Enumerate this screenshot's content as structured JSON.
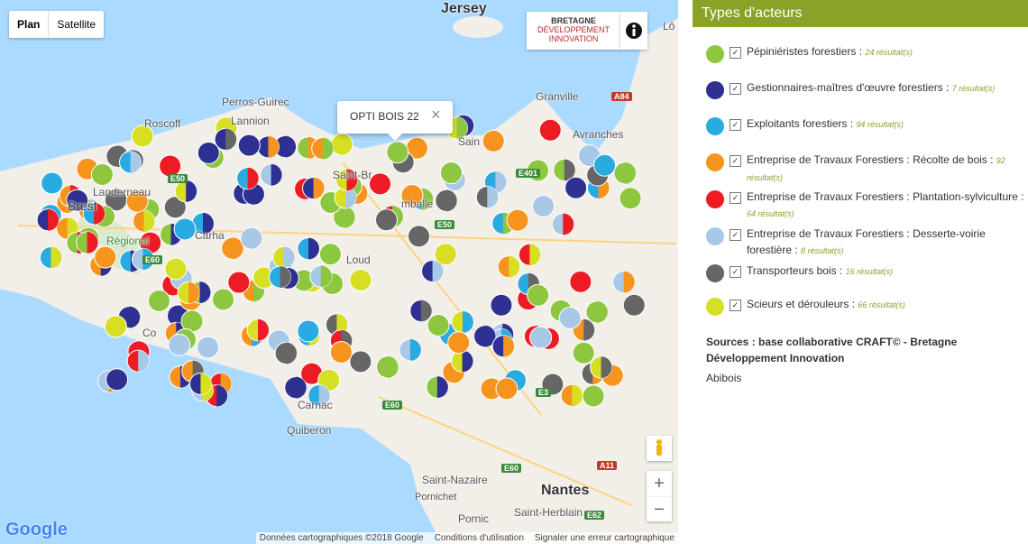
{
  "map": {
    "controls": {
      "plan": "Plan",
      "satellite": "Satellite",
      "zoom_in": "+",
      "zoom_out": "−"
    },
    "logo": {
      "line1": "BRETAGNE",
      "line2": "DÉVELOPPEMENT",
      "line3": "INNOVATION"
    },
    "popup": {
      "title": "OPTI BOIS 22",
      "close": "×"
    },
    "places": [
      "Jersey",
      "Lô",
      "Perros-Guirec",
      "Lannion",
      "Roscoff",
      "Saint-Br",
      "Granville",
      "Avranches",
      "Sain",
      "Landerneau",
      "Brest",
      "mballe",
      "Carha",
      "Loud",
      "Co",
      "Carnac",
      "Quiberon",
      "Saint-Nazaire",
      "Pornichet",
      "Nantes",
      "Saint-Herblain",
      "Pornic",
      "Régional"
    ],
    "roads": [
      "A84",
      "E401",
      "E50",
      "E60",
      "E60",
      "E3",
      "E60",
      "A11",
      "E62",
      "E50"
    ],
    "footer": {
      "brand": "Google",
      "data": "Données cartographiques ©2018 Google",
      "terms": "Conditions d'utilisation",
      "report": "Signaler une erreur cartographique"
    }
  },
  "legend": {
    "title": "Types d'acteurs",
    "items": [
      {
        "label": "Pépiniéristes forestiers : ",
        "count": "24 résultat(s)",
        "color": "#8dc63f"
      },
      {
        "label": "Gestionnaires-maîtres d'œuvre forestiers : ",
        "count": "7 résultat(s)",
        "color": "#2e3192"
      },
      {
        "label": "Exploitants forestiers : ",
        "count": "94 résultat(s)",
        "color": "#29abe2"
      },
      {
        "label": "Entreprise de Travaux Forestiers : Récolte de bois : ",
        "count": "92 résultat(s)",
        "color": "#f7941d"
      },
      {
        "label": "Entreprise de Travaux Forestiers : Plantation-sylviculture : ",
        "count": "64 résultat(s)",
        "color": "#ed1c24"
      },
      {
        "label": "Entreprise de Travaux Forestiers : Desserte-voirie forestière : ",
        "count": "8 résultat(s)",
        "color": "#a8c8e8"
      },
      {
        "label": "Transporteurs bois : ",
        "count": "16 résultat(s)",
        "color": "#666666"
      },
      {
        "label": "Scieurs et dérouleurs : ",
        "count": "66 résultat(s)",
        "color": "#d7df23"
      }
    ],
    "sources": "Sources : base collaborative CRAFT© - Bretagne Développement Innovation",
    "extra": "Abibois"
  }
}
